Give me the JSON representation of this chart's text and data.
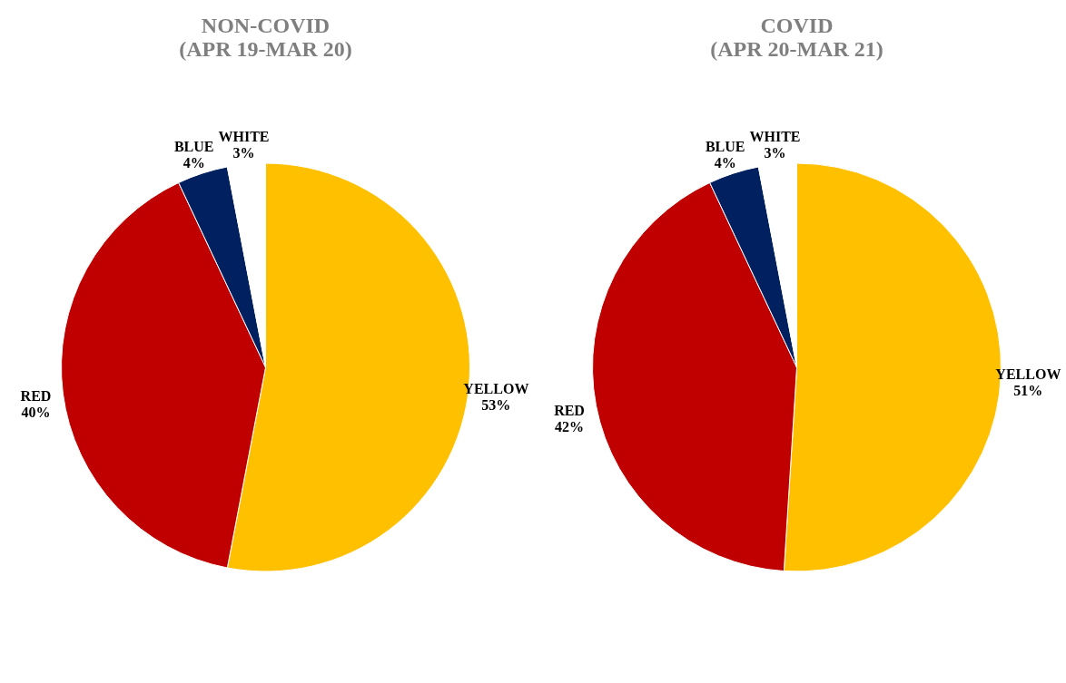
{
  "chart_data": [
    {
      "type": "pie",
      "title": "NON-COVID\n(APR 19-MAR 20)",
      "categories": [
        "YELLOW",
        "RED",
        "BLUE",
        "WHITE"
      ],
      "values": [
        53,
        40,
        4,
        3
      ],
      "value_labels": [
        "53%",
        "40%",
        "4%",
        "3%"
      ],
      "colors": [
        "#ffc000",
        "#c00000",
        "#002060",
        "#ffffff"
      ],
      "legend": false
    },
    {
      "type": "pie",
      "title": "COVID\n(APR 20-MAR 21)",
      "categories": [
        "YELLOW",
        "RED",
        "BLUE",
        "WHITE"
      ],
      "values": [
        51,
        42,
        4,
        3
      ],
      "value_labels": [
        "51%",
        "42%",
        "4%",
        "3%"
      ],
      "colors": [
        "#ffc000",
        "#c00000",
        "#002060",
        "#ffffff"
      ],
      "legend": false
    }
  ]
}
